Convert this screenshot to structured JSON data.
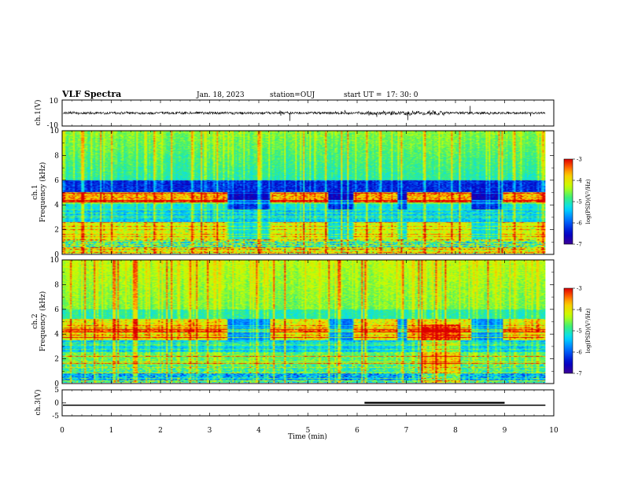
{
  "header": {
    "title": "VLF Spectra",
    "date": "Jan. 18, 2023",
    "station": "station=OUJ",
    "start": "start UT =  17: 30: 0"
  },
  "chart_data": [
    {
      "type": "line",
      "panel": "waveform-ch1",
      "ylabel": "ch.1(V)",
      "ylim": [
        -10,
        10
      ],
      "yticks": [
        "10",
        "-10"
      ],
      "xlim": [
        0,
        10
      ]
    },
    {
      "type": "heatmap",
      "panel": "spectrogram-ch1",
      "ylabel": "ch.1\nFrequency (kHz)",
      "ylabel_ch": "ch.1",
      "ylabel_freq": "Frequency (kHz)",
      "ylim": [
        0,
        10
      ],
      "yticks": [
        "0",
        "2",
        "4",
        "6",
        "8",
        "10"
      ],
      "xlim": [
        0,
        10
      ],
      "data_end_min": 9.83,
      "colorbar": {
        "label": "log(PSD)(V²/Hz)",
        "range": [
          -7,
          -3
        ],
        "ticks": [
          "-3",
          "-4",
          "-5",
          "-6",
          "-7"
        ]
      }
    },
    {
      "type": "heatmap",
      "panel": "spectrogram-ch2",
      "ylabel_ch": "ch.2",
      "ylabel_freq": "Frequency (kHz)",
      "ylim": [
        0,
        10
      ],
      "yticks": [
        "0",
        "2",
        "4",
        "6",
        "8",
        "10"
      ],
      "xlim": [
        0,
        10
      ],
      "data_end_min": 9.83,
      "colorbar": {
        "label": "log(PSD)(V²/Hz)",
        "range": [
          -7,
          -3
        ],
        "ticks": [
          "-3",
          "-4",
          "-5",
          "-6",
          "-7"
        ]
      }
    },
    {
      "type": "line",
      "panel": "ch3",
      "ylabel": "ch.3(V)",
      "ylim": [
        -5,
        5
      ],
      "yticks": [
        "5",
        "0",
        "-5"
      ],
      "xlim": [
        0,
        10
      ],
      "xlabel": "Time (min)",
      "xticks": [
        "0",
        "1",
        "2",
        "3",
        "4",
        "5",
        "6",
        "7",
        "8",
        "9",
        "10"
      ],
      "level_v": -0.9,
      "raised_interval_min": [
        6.15,
        9.0
      ]
    }
  ]
}
